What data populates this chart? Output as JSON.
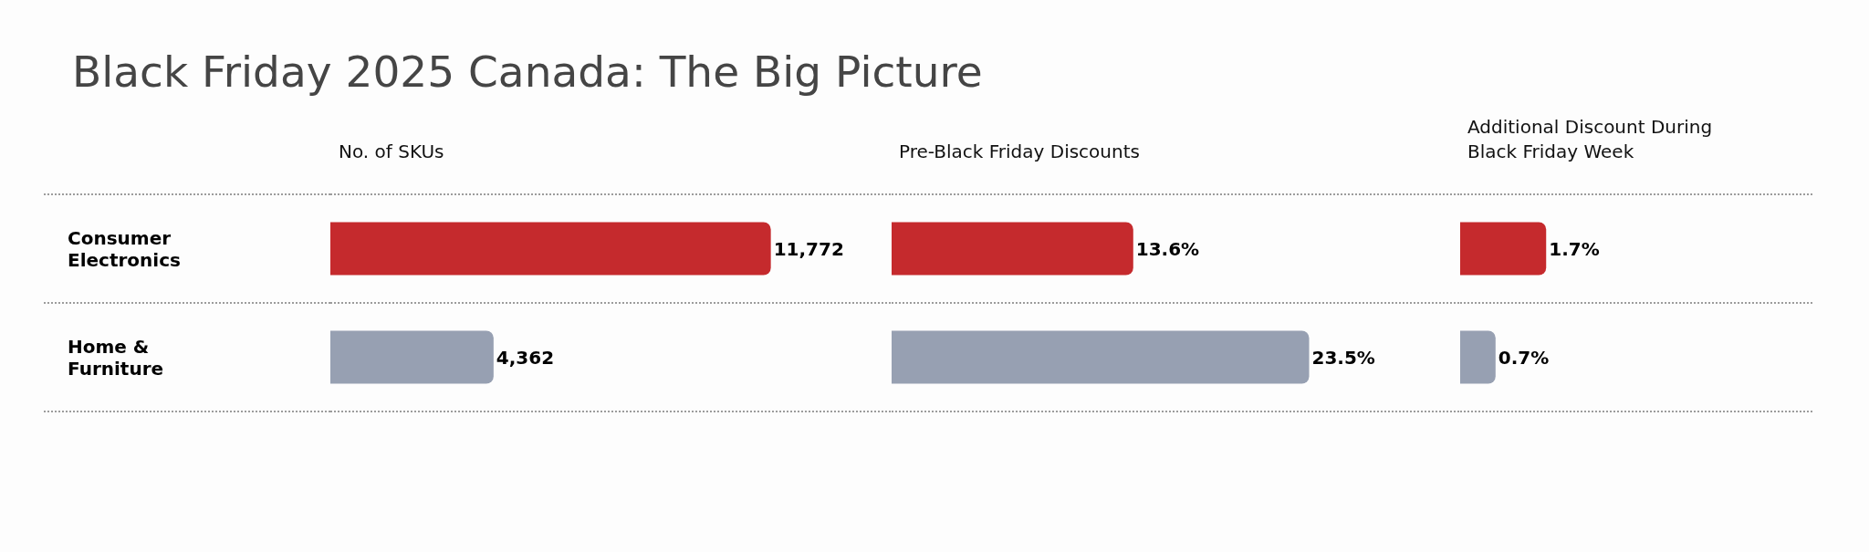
{
  "chart_data": [
    {
      "type": "bar",
      "orientation": "horizontal",
      "title": "Black Friday 2025 Canada: The Big Picture",
      "subtitle": "No. of SKUs",
      "categories": [
        "Consumer Electronics",
        "Home & Furniture"
      ],
      "values": [
        11772,
        4362
      ],
      "colors": [
        "#c52a2d",
        "#97a0b2"
      ],
      "value_labels": [
        "11,772",
        "4,362"
      ],
      "xlim": [
        0,
        15000
      ],
      "grid": "y",
      "tick_labels": "y"
    },
    {
      "type": "bar",
      "orientation": "horizontal",
      "subtitle": "Pre-Black Friday Discounts",
      "categories": [
        "Consumer Electronics",
        "Home & Furniture"
      ],
      "values": [
        13.6,
        23.5
      ],
      "colors": [
        "#c52a2d",
        "#97a0b2"
      ],
      "value_labels": [
        "13.6%",
        "23.5%"
      ],
      "xlim": [
        0,
        32
      ],
      "grid": "y",
      "tick_labels": false
    },
    {
      "type": "bar",
      "orientation": "horizontal",
      "subtitle": "Additional Discount During Black Friday Week",
      "categories": [
        "Consumer Electronics",
        "Home & Furniture"
      ],
      "values": [
        1.7,
        0.7
      ],
      "colors": [
        "#c52a2d",
        "#97a0b2"
      ],
      "value_labels": [
        "1.7%",
        "0.7%"
      ],
      "xlim": [
        0,
        7
      ],
      "grid": "y",
      "tick_labels": false
    }
  ]
}
